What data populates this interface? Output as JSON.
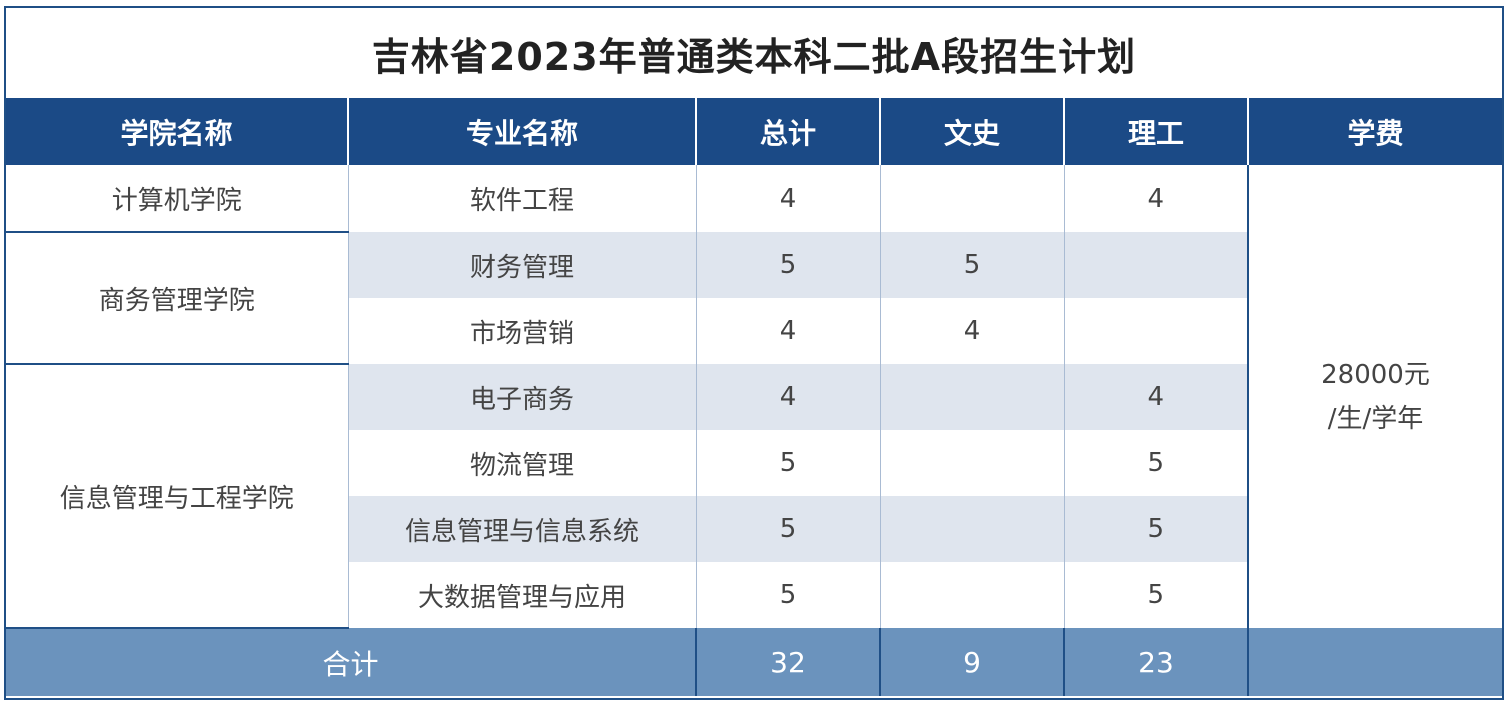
{
  "title": "吉林省2023年普通类本科二批A段招生计划",
  "headers": {
    "college": "学院名称",
    "major": "专业名称",
    "total": "总计",
    "arts": "文史",
    "science": "理工",
    "tuition": "学费"
  },
  "colleges": {
    "c1": "计算机学院",
    "c2": "商务管理学院",
    "c3": "信息管理与工程学院"
  },
  "rows": [
    {
      "major": "软件工程",
      "total": "4",
      "arts": "",
      "science": "4"
    },
    {
      "major": "财务管理",
      "total": "5",
      "arts": "5",
      "science": ""
    },
    {
      "major": "市场营销",
      "total": "4",
      "arts": "4",
      "science": ""
    },
    {
      "major": "电子商务",
      "total": "4",
      "arts": "",
      "science": "4"
    },
    {
      "major": "物流管理",
      "total": "5",
      "arts": "",
      "science": "5"
    },
    {
      "major": "信息管理与信息系统",
      "total": "5",
      "arts": "",
      "science": "5"
    },
    {
      "major": "大数据管理与应用",
      "total": "5",
      "arts": "",
      "science": "5"
    }
  ],
  "tuition": {
    "line1": "28000元",
    "line2": "/生/学年"
  },
  "footer": {
    "label": "合计",
    "total": "32",
    "arts": "9",
    "science": "23",
    "tuition": ""
  },
  "colors": {
    "header_bg": "#1b4a86",
    "row_shade": "#dfe5ee",
    "footer_bg": "#6b93bd"
  }
}
